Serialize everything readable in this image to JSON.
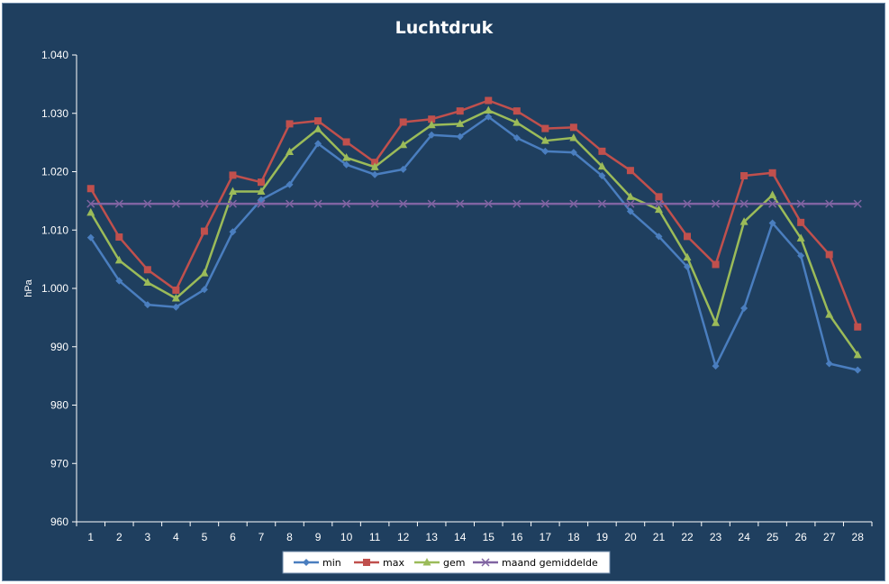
{
  "chart_data": {
    "type": "line",
    "title": "Luchtdruk",
    "ylabel": "hPa",
    "xlabel": "",
    "x": [
      1,
      2,
      3,
      4,
      5,
      6,
      7,
      8,
      9,
      10,
      11,
      12,
      13,
      14,
      15,
      16,
      17,
      18,
      19,
      20,
      21,
      22,
      23,
      24,
      25,
      26,
      27,
      28
    ],
    "ylim": [
      960,
      1040
    ],
    "yticks": [
      960,
      970,
      980,
      990,
      1000,
      1010,
      1020,
      1030,
      1040
    ],
    "ytick_labels": [
      "960",
      "970",
      "980",
      "990",
      "1.000",
      "1.010",
      "1.020",
      "1.030",
      "1.040"
    ],
    "grid": false,
    "legend_position": "bottom",
    "series": [
      {
        "name": "min",
        "color": "#4a7ebf",
        "marker": "diamond",
        "values": [
          1008.7,
          1001.3,
          997.2,
          996.8,
          999.8,
          1009.7,
          1015.2,
          1017.8,
          1024.8,
          1021.2,
          1019.5,
          1020.4,
          1026.3,
          1026.0,
          1029.4,
          1025.8,
          1023.5,
          1023.3,
          1019.3,
          1013.2,
          1008.9,
          1003.7,
          986.7,
          996.6,
          1011.2,
          1005.6,
          987.1,
          986.0
        ]
      },
      {
        "name": "max",
        "color": "#c0504d",
        "marker": "square",
        "values": [
          1017.1,
          1008.8,
          1003.2,
          999.7,
          1009.8,
          1019.4,
          1018.2,
          1028.2,
          1028.7,
          1025.1,
          1021.6,
          1028.5,
          1029.0,
          1030.4,
          1032.2,
          1030.4,
          1027.4,
          1027.6,
          1023.5,
          1020.2,
          1015.7,
          1008.9,
          1004.1,
          1019.3,
          1019.8,
          1011.3,
          1005.8,
          993.4
        ]
      },
      {
        "name": "gem",
        "color": "#9bbb59",
        "marker": "triangle",
        "values": [
          1013.0,
          1004.8,
          1001.0,
          998.3,
          1002.6,
          1016.6,
          1016.6,
          1023.4,
          1027.3,
          1022.4,
          1020.8,
          1024.6,
          1028.0,
          1028.2,
          1030.5,
          1028.4,
          1025.3,
          1025.8,
          1020.9,
          1015.7,
          1013.5,
          1005.3,
          994.1,
          1011.4,
          1016.0,
          1008.6,
          995.5,
          988.6
        ]
      },
      {
        "name": "maand gemiddelde",
        "color": "#8064a2",
        "marker": "x",
        "values": [
          1014.5,
          1014.5,
          1014.5,
          1014.5,
          1014.5,
          1014.5,
          1014.5,
          1014.5,
          1014.5,
          1014.5,
          1014.5,
          1014.5,
          1014.5,
          1014.5,
          1014.5,
          1014.5,
          1014.5,
          1014.5,
          1014.5,
          1014.5,
          1014.5,
          1014.5,
          1014.5,
          1014.5,
          1014.5,
          1014.5,
          1014.5,
          1014.5
        ]
      }
    ]
  }
}
